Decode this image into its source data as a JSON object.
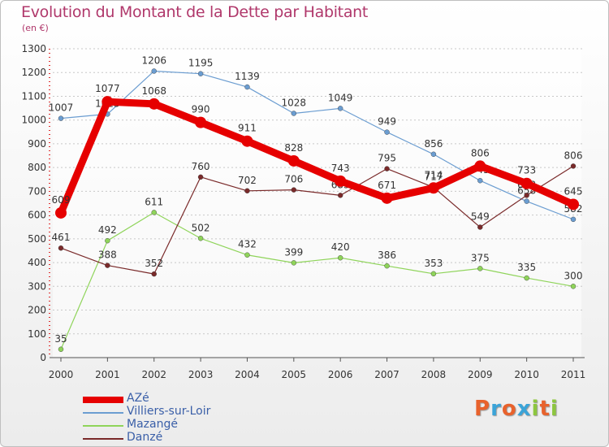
{
  "header": {
    "title": "Evolution du Montant de la Dette par Habitant",
    "subtitle": "(en €)"
  },
  "brand": {
    "letters": [
      "P",
      "r",
      "o",
      "x",
      "i",
      "t",
      "i"
    ],
    "colors": [
      "#e8622c",
      "#3ba4d8",
      "#e8622c",
      "#3ba4d8",
      "#8dc63f",
      "#e8622c",
      "#8dc63f"
    ]
  },
  "chart_data": {
    "type": "line",
    "title": "Evolution du Montant de la Dette par Habitant",
    "subtitle": "(en €)",
    "xlabel": "",
    "ylabel": "",
    "x": [
      "2000",
      "2001",
      "2002",
      "2003",
      "2004",
      "2005",
      "2006",
      "2007",
      "2008",
      "2009",
      "2010",
      "2011"
    ],
    "ylim": [
      0,
      1300
    ],
    "yticks": [
      0,
      100,
      200,
      300,
      400,
      500,
      600,
      700,
      800,
      900,
      1000,
      1100,
      1200,
      1300
    ],
    "grid": "horizontal-dotted",
    "legend_position": "bottom-left",
    "series": [
      {
        "name": "AZé",
        "color": "#e60000",
        "values": [
          609,
          1077,
          1068,
          990,
          911,
          828,
          743,
          671,
          714,
          806,
          733,
          645
        ]
      },
      {
        "name": "Villiers-sur-Loir",
        "color": "#6b9dd1",
        "values": [
          1007,
          1025,
          1206,
          1195,
          1139,
          1028,
          1049,
          949,
          856,
          745,
          658,
          582
        ]
      },
      {
        "name": "Mazangé",
        "color": "#8fd45a",
        "values": [
          35,
          492,
          611,
          502,
          432,
          399,
          420,
          386,
          353,
          375,
          335,
          300
        ]
      },
      {
        "name": "Danzé",
        "color": "#7a2a2a",
        "values": [
          461,
          388,
          352,
          760,
          702,
          706,
          683,
          795,
          717,
          549,
          683,
          806
        ]
      }
    ]
  }
}
